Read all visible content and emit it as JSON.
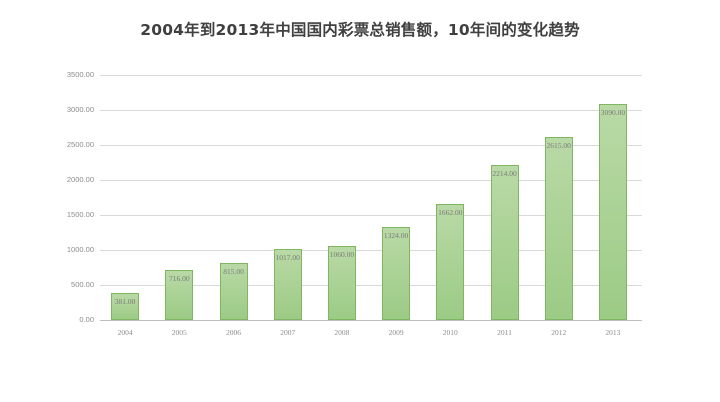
{
  "chart_data": {
    "type": "bar",
    "title": "2004年到2013年中国国内彩票总销售额，10年间的变化趋势",
    "xlabel": "",
    "ylabel": "",
    "categories": [
      "2004",
      "2005",
      "2006",
      "2007",
      "2008",
      "2009",
      "2010",
      "2011",
      "2012",
      "2013"
    ],
    "values": [
      381.0,
      716.0,
      815.0,
      1017.0,
      1060.0,
      1324.0,
      1662.0,
      2214.0,
      2615.0,
      3090.0
    ],
    "value_labels": [
      "381.00",
      "716.00",
      "815.00",
      "1017.00",
      "1060.00",
      "1324.00",
      "1662.00",
      "2214.00",
      "2615.00",
      "3090.00"
    ],
    "ylim": [
      0,
      3500
    ],
    "yticks": [
      "0.00",
      "500.00",
      "1000.00",
      "1500.00",
      "2000.00",
      "2500.00",
      "3000.00",
      "3500.00"
    ],
    "grid": true,
    "legend": "none",
    "bar_color": "#a9d18e",
    "bar_border_color": "#7fb761"
  }
}
